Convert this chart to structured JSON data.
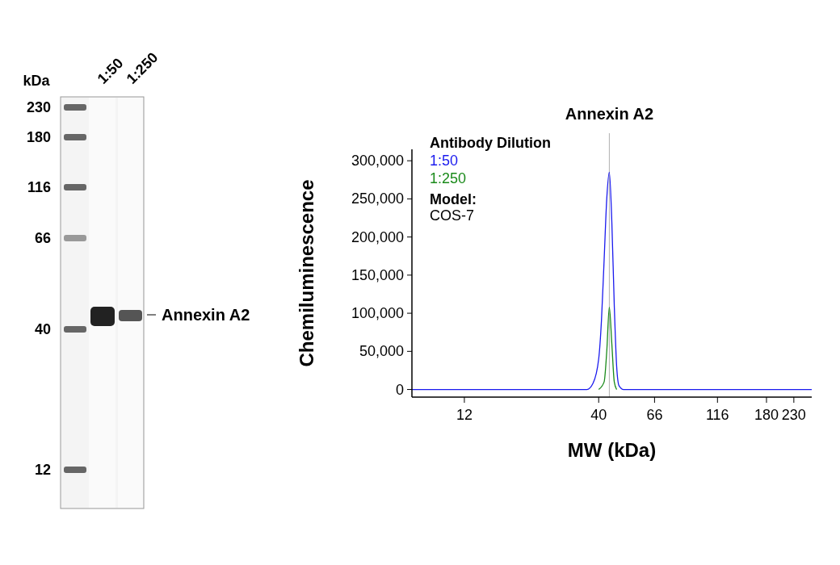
{
  "chart_data": [
    {
      "type": "other",
      "annotations": [
        "kDa",
        "230",
        "180",
        "116",
        "66",
        "40",
        "12",
        "1:50",
        "1:250",
        "Annexin A2"
      ]
    },
    {
      "type": "line",
      "xlabel": "MW (kDa)",
      "ylabel": "Chemiluminescence",
      "log": "x",
      "xlim": [
        7.5,
        270
      ],
      "xticks": [
        12,
        40,
        66,
        116,
        180,
        230
      ],
      "ylim": [
        -10000,
        315000
      ],
      "yticks": [
        {
          "value": 0,
          "label": "0"
        },
        {
          "value": 50000,
          "label": "50,000"
        },
        {
          "value": 100000,
          "label": "100,000"
        },
        {
          "value": 150000,
          "label": "150,000"
        },
        {
          "value": 200000,
          "label": "200,000"
        },
        {
          "value": 250000,
          "label": "250,000"
        },
        {
          "value": 300000,
          "label": "300,000"
        }
      ],
      "grid": false,
      "legend": "top left",
      "legend_title": "Antibody Dilution",
      "ref_lines": [
        {
          "axis": "x",
          "value": 44,
          "label": "Annexin A2",
          "color": "#b0b0b0"
        }
      ],
      "annotations": [
        "Model:",
        "COS-7"
      ],
      "series": [
        {
          "name": "1:50",
          "color": "#1a1aee",
          "x": [
            7.5,
            20,
            30,
            36,
            38,
            40,
            41,
            42,
            43,
            44,
            45,
            46,
            47,
            48,
            50,
            60,
            100,
            200,
            250,
            270
          ],
          "values": [
            0,
            0,
            0,
            0,
            8000,
            40000,
            90000,
            170000,
            250000,
            285000,
            220000,
            110000,
            30000,
            5000,
            0,
            0,
            0,
            0,
            0,
            0
          ]
        },
        {
          "name": "1:250",
          "color": "#1a8a1a",
          "x": [
            40,
            42,
            43,
            44,
            45,
            46,
            47
          ],
          "values": [
            0,
            10000,
            50000,
            108000,
            60000,
            10000,
            0
          ]
        }
      ]
    }
  ]
}
